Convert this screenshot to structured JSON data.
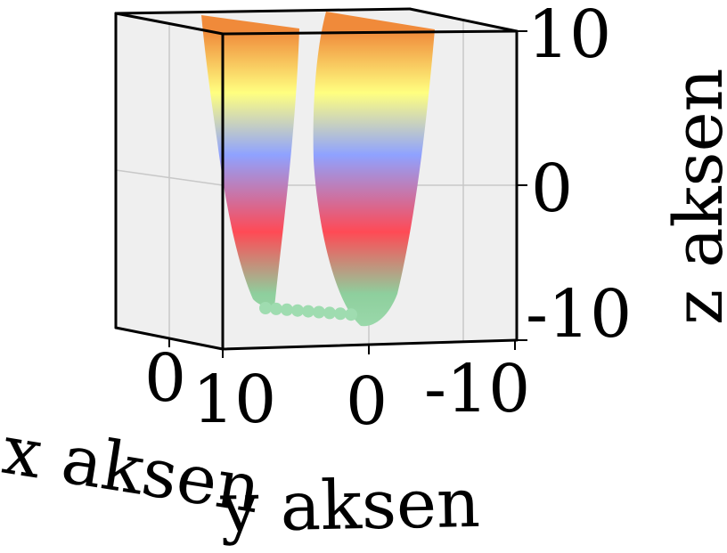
{
  "chart_data": {
    "type": "surface3d",
    "title": "",
    "xlabel": "x aksen",
    "ylabel": "y aksen",
    "zlabel": "z aksen",
    "x_ticks": [
      "0"
    ],
    "y_ticks": [
      "10",
      "0",
      "-10"
    ],
    "z_ticks": [
      "10",
      "0",
      "-10"
    ],
    "zlim": [
      -10,
      10
    ],
    "grid": true,
    "colormap": [
      {
        "z": -10,
        "color": "#9fdcb0"
      },
      {
        "z": -7,
        "color": "#8ecf9d"
      },
      {
        "z": -3,
        "color": "#ff4a55"
      },
      {
        "z": 2,
        "color": "#8fa2ff"
      },
      {
        "z": 6,
        "color": "#ffff80"
      },
      {
        "z": 10,
        "color": "#f08a3a"
      }
    ],
    "colors": {
      "pane": "#efefef",
      "gridline": "#c8c8c8",
      "frame": "#000000"
    }
  }
}
